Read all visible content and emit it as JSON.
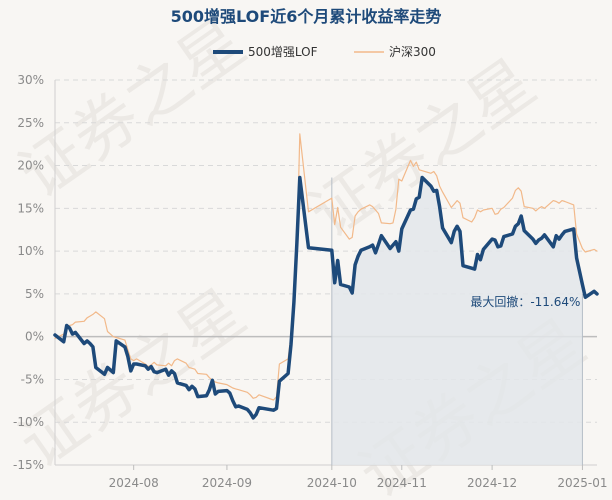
{
  "chart_data": {
    "type": "line",
    "title": "500增强LOF近6个月累计收益率走势",
    "xlabel": "",
    "ylabel": "",
    "y_unit": "%",
    "ylim": [
      -15,
      30
    ],
    "yticks": [
      -15,
      -10,
      -5,
      0,
      5,
      10,
      15,
      20,
      25,
      30
    ],
    "xlim": [
      "2024-07-05",
      "2025-01-07"
    ],
    "xticks": [
      "2024-08-01",
      "2024-09-02",
      "2024-10-08",
      "2024-11-01",
      "2024-12-02",
      "2025-01-02"
    ],
    "xtick_labels": [
      "2024-08",
      "2024-09",
      "2024-10",
      "2024-11",
      "2024-12",
      "2025-01"
    ],
    "grid": true,
    "legend_position": "top-center",
    "annotation": {
      "text": "最大回撤：-11.64%",
      "x_start": "2024-10-08",
      "x_end": "2025-01-02",
      "y_start": 18.6,
      "y_end": 5.0
    },
    "watermark": "证券之星",
    "colors": {
      "background": "#f8f6f3",
      "series1": "#1e4a7a",
      "series2": "#f2b98a",
      "drawdown_fill": "#e3e6ea",
      "drawdown_line": "#b6bec7",
      "grid": "#d9d9d9",
      "zero_line": "#bdbdbd"
    },
    "series": [
      {
        "name": "500增强LOF",
        "points": [
          [
            "2024-07-05",
            0.2
          ],
          [
            "2024-07-08",
            -0.6
          ],
          [
            "2024-07-09",
            1.3
          ],
          [
            "2024-07-10",
            1.0
          ],
          [
            "2024-07-11",
            0.3
          ],
          [
            "2024-07-12",
            0.5
          ],
          [
            "2024-07-15",
            -0.8
          ],
          [
            "2024-07-16",
            -0.5
          ],
          [
            "2024-07-17",
            -0.8
          ],
          [
            "2024-07-18",
            -1.2
          ],
          [
            "2024-07-19",
            -3.6
          ],
          [
            "2024-07-22",
            -4.4
          ],
          [
            "2024-07-23",
            -3.6
          ],
          [
            "2024-07-24",
            -3.9
          ],
          [
            "2024-07-25",
            -4.2
          ],
          [
            "2024-07-26",
            -0.5
          ],
          [
            "2024-07-29",
            -1.2
          ],
          [
            "2024-07-30",
            -2.3
          ],
          [
            "2024-07-31",
            -4.0
          ],
          [
            "2024-08-01",
            -3.2
          ],
          [
            "2024-08-02",
            -3.2
          ],
          [
            "2024-08-05",
            -3.4
          ],
          [
            "2024-08-06",
            -3.8
          ],
          [
            "2024-08-07",
            -3.5
          ],
          [
            "2024-08-08",
            -4.1
          ],
          [
            "2024-08-09",
            -4.2
          ],
          [
            "2024-08-12",
            -3.8
          ],
          [
            "2024-08-13",
            -4.5
          ],
          [
            "2024-08-14",
            -4.0
          ],
          [
            "2024-08-15",
            -4.3
          ],
          [
            "2024-08-16",
            -5.4
          ],
          [
            "2024-08-19",
            -5.7
          ],
          [
            "2024-08-20",
            -6.2
          ],
          [
            "2024-08-21",
            -5.8
          ],
          [
            "2024-08-22",
            -6.1
          ],
          [
            "2024-08-23",
            -7.0
          ],
          [
            "2024-08-26",
            -6.9
          ],
          [
            "2024-08-27",
            -6.2
          ],
          [
            "2024-08-28",
            -5.1
          ],
          [
            "2024-08-29",
            -6.7
          ],
          [
            "2024-08-30",
            -6.4
          ],
          [
            "2024-09-02",
            -6.3
          ],
          [
            "2024-09-03",
            -6.6
          ],
          [
            "2024-09-04",
            -7.5
          ],
          [
            "2024-09-05",
            -8.2
          ],
          [
            "2024-09-06",
            -8.1
          ],
          [
            "2024-09-09",
            -8.5
          ],
          [
            "2024-09-10",
            -8.9
          ],
          [
            "2024-09-11",
            -9.5
          ],
          [
            "2024-09-12",
            -9.1
          ],
          [
            "2024-09-13",
            -8.3
          ],
          [
            "2024-09-18",
            -8.6
          ],
          [
            "2024-09-19",
            -8.4
          ],
          [
            "2024-09-20",
            -5.2
          ],
          [
            "2024-09-23",
            -4.3
          ],
          [
            "2024-09-24",
            -0.9
          ],
          [
            "2024-09-25",
            4.0
          ],
          [
            "2024-09-26",
            11.0
          ],
          [
            "2024-09-27",
            18.6
          ],
          [
            "2024-09-30",
            10.4
          ],
          [
            "2024-10-08",
            10.1
          ],
          [
            "2024-10-09",
            6.3
          ],
          [
            "2024-10-10",
            8.9
          ],
          [
            "2024-10-11",
            6.1
          ],
          [
            "2024-10-14",
            5.8
          ],
          [
            "2024-10-15",
            5.1
          ],
          [
            "2024-10-16",
            8.4
          ],
          [
            "2024-10-17",
            9.4
          ],
          [
            "2024-10-18",
            10.1
          ],
          [
            "2024-10-21",
            10.5
          ],
          [
            "2024-10-22",
            10.7
          ],
          [
            "2024-10-23",
            9.8
          ],
          [
            "2024-10-24",
            10.8
          ],
          [
            "2024-10-25",
            11.8
          ],
          [
            "2024-10-28",
            10.3
          ],
          [
            "2024-10-29",
            10.7
          ],
          [
            "2024-10-30",
            11.1
          ],
          [
            "2024-10-31",
            10.0
          ],
          [
            "2024-11-01",
            12.6
          ],
          [
            "2024-11-04",
            14.8
          ],
          [
            "2024-11-05",
            14.9
          ],
          [
            "2024-11-06",
            16.1
          ],
          [
            "2024-11-07",
            16.3
          ],
          [
            "2024-11-08",
            18.6
          ],
          [
            "2024-11-11",
            17.6
          ],
          [
            "2024-11-12",
            17.0
          ],
          [
            "2024-11-13",
            17.1
          ],
          [
            "2024-11-14",
            15.2
          ],
          [
            "2024-11-15",
            12.7
          ],
          [
            "2024-11-18",
            11.0
          ],
          [
            "2024-11-19",
            12.3
          ],
          [
            "2024-11-20",
            12.9
          ],
          [
            "2024-11-21",
            12.3
          ],
          [
            "2024-11-22",
            8.3
          ],
          [
            "2024-11-25",
            8.0
          ],
          [
            "2024-11-26",
            7.9
          ],
          [
            "2024-11-27",
            9.6
          ],
          [
            "2024-11-28",
            9.0
          ],
          [
            "2024-11-29",
            10.2
          ],
          [
            "2024-12-02",
            11.4
          ],
          [
            "2024-12-03",
            11.3
          ],
          [
            "2024-12-04",
            10.5
          ],
          [
            "2024-12-05",
            10.6
          ],
          [
            "2024-12-06",
            11.7
          ],
          [
            "2024-12-09",
            12.0
          ],
          [
            "2024-12-10",
            12.9
          ],
          [
            "2024-12-11",
            13.2
          ],
          [
            "2024-12-12",
            14.1
          ],
          [
            "2024-12-13",
            12.4
          ],
          [
            "2024-12-16",
            11.4
          ],
          [
            "2024-12-17",
            10.9
          ],
          [
            "2024-12-18",
            11.3
          ],
          [
            "2024-12-19",
            11.5
          ],
          [
            "2024-12-20",
            11.9
          ],
          [
            "2024-12-23",
            10.5
          ],
          [
            "2024-12-24",
            11.8
          ],
          [
            "2024-12-25",
            11.4
          ],
          [
            "2024-12-26",
            11.9
          ],
          [
            "2024-12-27",
            12.3
          ],
          [
            "2024-12-30",
            12.6
          ],
          [
            "2024-12-31",
            9.2
          ],
          [
            "2025-01-02",
            6.1
          ],
          [
            "2025-01-03",
            4.6
          ],
          [
            "2025-01-06",
            5.3
          ],
          [
            "2025-01-07",
            5.0
          ]
        ]
      },
      {
        "name": "沪深300",
        "points": [
          [
            "2024-07-05",
            -0.2
          ],
          [
            "2024-07-08",
            0.3
          ],
          [
            "2024-07-09",
            1.1
          ],
          [
            "2024-07-10",
            1.3
          ],
          [
            "2024-07-11",
            1.4
          ],
          [
            "2024-07-12",
            1.7
          ],
          [
            "2024-07-15",
            1.8
          ],
          [
            "2024-07-16",
            2.2
          ],
          [
            "2024-07-17",
            2.4
          ],
          [
            "2024-07-18",
            2.6
          ],
          [
            "2024-07-19",
            2.9
          ],
          [
            "2024-07-22",
            2.1
          ],
          [
            "2024-07-23",
            0.6
          ],
          [
            "2024-07-24",
            0.3
          ],
          [
            "2024-07-25",
            0.0
          ],
          [
            "2024-07-26",
            -0.1
          ],
          [
            "2024-07-29",
            -0.4
          ],
          [
            "2024-07-30",
            -1.5
          ],
          [
            "2024-07-31",
            -2.6
          ],
          [
            "2024-08-01",
            -2.8
          ],
          [
            "2024-08-02",
            -2.6
          ],
          [
            "2024-08-05",
            -3.2
          ],
          [
            "2024-08-06",
            -3.5
          ],
          [
            "2024-08-07",
            -3.3
          ],
          [
            "2024-08-08",
            -3.0
          ],
          [
            "2024-08-09",
            -3.3
          ],
          [
            "2024-08-12",
            -3.4
          ],
          [
            "2024-08-13",
            -3.1
          ],
          [
            "2024-08-14",
            -3.4
          ],
          [
            "2024-08-15",
            -2.8
          ],
          [
            "2024-08-16",
            -2.6
          ],
          [
            "2024-08-19",
            -3.1
          ],
          [
            "2024-08-20",
            -3.6
          ],
          [
            "2024-08-21",
            -3.7
          ],
          [
            "2024-08-22",
            -3.8
          ],
          [
            "2024-08-23",
            -4.3
          ],
          [
            "2024-08-26",
            -4.4
          ],
          [
            "2024-08-27",
            -4.8
          ],
          [
            "2024-08-28",
            -5.1
          ],
          [
            "2024-08-29",
            -5.3
          ],
          [
            "2024-08-30",
            -5.4
          ],
          [
            "2024-09-02",
            -5.6
          ],
          [
            "2024-09-03",
            -5.8
          ],
          [
            "2024-09-04",
            -6.0
          ],
          [
            "2024-09-05",
            -6.1
          ],
          [
            "2024-09-06",
            -6.2
          ],
          [
            "2024-09-09",
            -6.5
          ],
          [
            "2024-09-10",
            -6.8
          ],
          [
            "2024-09-11",
            -7.2
          ],
          [
            "2024-09-12",
            -7.1
          ],
          [
            "2024-09-13",
            -6.8
          ],
          [
            "2024-09-18",
            -7.4
          ],
          [
            "2024-09-19",
            -7.0
          ],
          [
            "2024-09-20",
            -3.2
          ],
          [
            "2024-09-23",
            -2.6
          ],
          [
            "2024-09-24",
            0.2
          ],
          [
            "2024-09-25",
            4.8
          ],
          [
            "2024-09-26",
            9.8
          ],
          [
            "2024-09-27",
            23.7
          ],
          [
            "2024-09-30",
            14.6
          ],
          [
            "2024-10-08",
            16.2
          ],
          [
            "2024-10-09",
            13.1
          ],
          [
            "2024-10-10",
            15.1
          ],
          [
            "2024-10-11",
            12.8
          ],
          [
            "2024-10-14",
            11.4
          ],
          [
            "2024-10-15",
            11.6
          ],
          [
            "2024-10-16",
            14.1
          ],
          [
            "2024-10-17",
            14.6
          ],
          [
            "2024-10-18",
            14.9
          ],
          [
            "2024-10-21",
            15.4
          ],
          [
            "2024-10-22",
            15.2
          ],
          [
            "2024-10-23",
            14.8
          ],
          [
            "2024-10-24",
            14.4
          ],
          [
            "2024-10-25",
            13.3
          ],
          [
            "2024-10-28",
            13.2
          ],
          [
            "2024-10-29",
            13.3
          ],
          [
            "2024-10-30",
            14.9
          ],
          [
            "2024-10-31",
            18.4
          ],
          [
            "2024-11-01",
            18.2
          ],
          [
            "2024-11-04",
            20.6
          ],
          [
            "2024-11-05",
            19.9
          ],
          [
            "2024-11-06",
            20.4
          ],
          [
            "2024-11-07",
            19.5
          ],
          [
            "2024-11-08",
            19.4
          ],
          [
            "2024-11-11",
            19.1
          ],
          [
            "2024-11-12",
            19.3
          ],
          [
            "2024-11-13",
            18.8
          ],
          [
            "2024-11-14",
            17.6
          ],
          [
            "2024-11-15",
            16.9
          ],
          [
            "2024-11-18",
            15.1
          ],
          [
            "2024-11-19",
            15.5
          ],
          [
            "2024-11-20",
            15.9
          ],
          [
            "2024-11-21",
            15.6
          ],
          [
            "2024-11-22",
            13.9
          ],
          [
            "2024-11-25",
            13.4
          ],
          [
            "2024-11-26",
            13.9
          ],
          [
            "2024-11-27",
            14.8
          ],
          [
            "2024-11-28",
            14.6
          ],
          [
            "2024-11-29",
            14.8
          ],
          [
            "2024-12-02",
            15.0
          ],
          [
            "2024-12-03",
            14.3
          ],
          [
            "2024-12-04",
            14.4
          ],
          [
            "2024-12-05",
            14.9
          ],
          [
            "2024-12-06",
            15.1
          ],
          [
            "2024-12-09",
            16.2
          ],
          [
            "2024-12-10",
            17.1
          ],
          [
            "2024-12-11",
            17.4
          ],
          [
            "2024-12-12",
            17.0
          ],
          [
            "2024-12-13",
            15.2
          ],
          [
            "2024-12-16",
            15.0
          ],
          [
            "2024-12-17",
            14.7
          ],
          [
            "2024-12-18",
            15.0
          ],
          [
            "2024-12-19",
            15.2
          ],
          [
            "2024-12-20",
            15.0
          ],
          [
            "2024-12-23",
            15.9
          ],
          [
            "2024-12-24",
            15.8
          ],
          [
            "2024-12-25",
            15.6
          ],
          [
            "2024-12-26",
            15.9
          ],
          [
            "2024-12-27",
            15.8
          ],
          [
            "2024-12-30",
            15.4
          ],
          [
            "2024-12-31",
            12.0
          ],
          [
            "2025-01-02",
            10.3
          ],
          [
            "2025-01-03",
            9.9
          ],
          [
            "2025-01-06",
            10.2
          ],
          [
            "2025-01-07",
            10.0
          ]
        ]
      }
    ]
  }
}
